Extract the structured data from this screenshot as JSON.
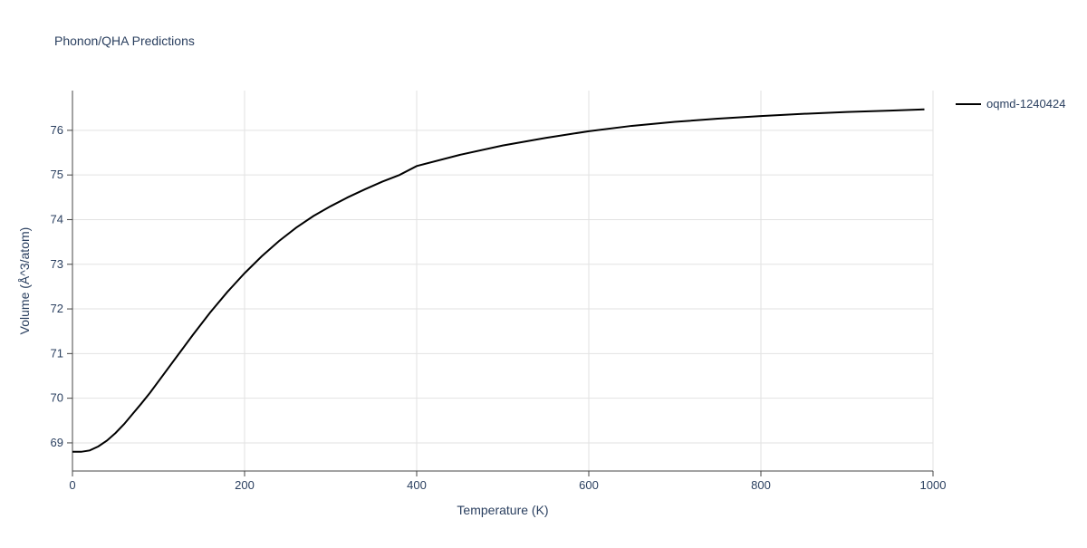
{
  "chart_data": {
    "type": "line",
    "title": "Phonon/QHA Predictions",
    "x_label": "Temperature (K)",
    "y_label": "Volume (Å^3/atom)",
    "x": [
      0,
      10,
      20,
      30,
      40,
      50,
      60,
      70,
      80,
      90,
      100,
      120,
      140,
      160,
      180,
      200,
      220,
      240,
      260,
      280,
      300,
      320,
      340,
      360,
      380,
      400,
      450,
      500,
      550,
      600,
      650,
      700,
      750,
      800,
      850,
      900,
      950,
      990
    ],
    "series": [
      {
        "name": "oqmd-1240424",
        "color": "#000000",
        "values": [
          68.8,
          68.8,
          68.83,
          68.92,
          69.05,
          69.22,
          69.42,
          69.65,
          69.88,
          70.12,
          70.38,
          70.9,
          71.42,
          71.92,
          72.38,
          72.8,
          73.18,
          73.52,
          73.82,
          74.08,
          74.3,
          74.5,
          74.68,
          74.85,
          75.0,
          75.2,
          75.45,
          75.66,
          75.83,
          75.98,
          76.1,
          76.19,
          76.26,
          76.32,
          76.37,
          76.41,
          76.44,
          76.47
        ]
      }
    ],
    "xlim": [
      0,
      1000
    ],
    "xticks": [
      0,
      200,
      400,
      600,
      800,
      1000
    ],
    "ylim": [
      68.37,
      76.89
    ],
    "yticks": [
      69,
      70,
      71,
      72,
      73,
      74,
      75,
      76
    ],
    "grid": true,
    "legend": "top-right"
  }
}
